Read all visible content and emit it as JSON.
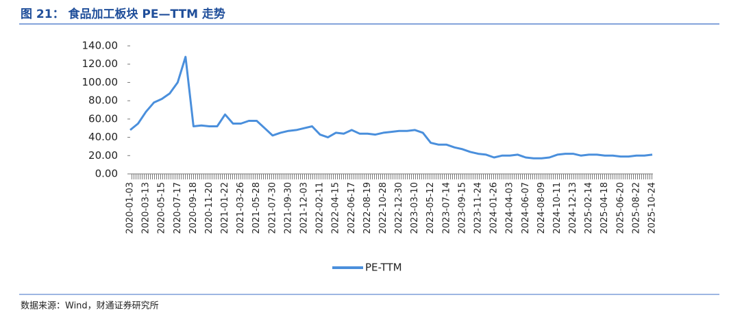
{
  "header": {
    "title": "图 21：  食品加工板块 PE—TTM 走势"
  },
  "chart_data": {
    "type": "line",
    "categories": [
      "2020-01-03",
      null,
      "2020-03-13",
      null,
      "2020-05-15",
      null,
      "2020-07-17",
      null,
      "2020-09-18",
      null,
      "2020-11-20",
      null,
      "2021-01-22",
      null,
      "2021-03-26",
      null,
      "2021-05-28",
      null,
      "2021-07-30",
      null,
      "2021-09-30",
      null,
      "2021-12-03",
      null,
      "2022-02-11",
      null,
      "2022-04-15",
      null,
      "2022-06-17",
      null,
      "2022-08-19",
      null,
      "2022-10-28",
      null,
      "2022-12-30",
      null,
      "2023-03-10",
      null,
      "2023-05-12",
      null,
      "2023-07-14",
      null,
      "2023-09-15",
      null,
      "2023-11-24",
      null,
      "2024-01-26",
      null,
      "2024-04-03",
      null,
      "2024-06-07",
      null,
      "2024-08-09",
      null,
      "2024-10-11",
      null,
      "2024-12-13",
      null,
      "2025-02-14",
      null,
      "2025-04-18",
      null,
      "2025-06-20",
      null,
      "2025-08-22",
      null,
      "2025-10-24"
    ],
    "series": [
      {
        "name": "PE-TTM",
        "color": "#4a8fdc",
        "values": [
          48,
          55,
          68,
          78,
          82,
          88,
          100,
          128,
          52,
          53,
          52,
          52,
          65,
          55,
          55,
          58,
          58,
          50,
          42,
          45,
          47,
          48,
          50,
          52,
          43,
          40,
          45,
          44,
          48,
          44,
          44,
          43,
          45,
          46,
          47,
          47,
          48,
          45,
          34,
          32,
          32,
          29,
          27,
          24,
          22,
          21,
          18,
          20,
          20,
          21,
          18,
          17,
          17,
          18,
          21,
          22,
          22,
          20,
          21,
          21,
          20,
          20,
          19,
          19,
          20,
          20,
          21
        ]
      }
    ],
    "ylim": [
      0,
      140
    ],
    "yticks": [
      {
        "value": 0,
        "label": "0.00"
      },
      {
        "value": 20,
        "label": "20.00"
      },
      {
        "value": 40,
        "label": "40.00"
      },
      {
        "value": 60,
        "label": "60.00"
      },
      {
        "value": 80,
        "label": "80.00"
      },
      {
        "value": 100,
        "label": "100.00"
      },
      {
        "value": 120,
        "label": "120.00"
      },
      {
        "value": 140,
        "label": "140.00"
      }
    ],
    "legend": "bottom"
  },
  "footer": {
    "source": "数据来源：Wind，财通证券研究所"
  }
}
